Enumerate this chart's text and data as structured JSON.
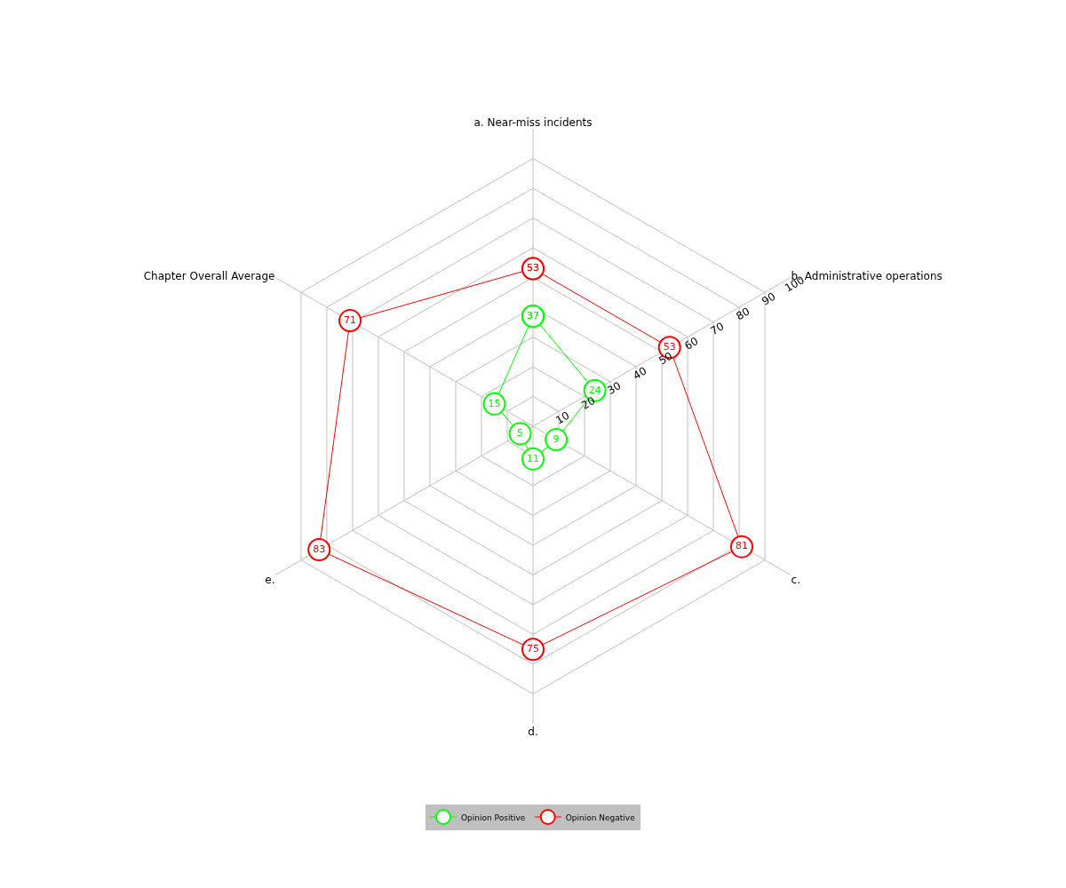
{
  "chart_data": {
    "type": "radar",
    "categories": [
      "a. Near-miss incidents",
      "b. Administrative operations",
      "c.",
      "d.",
      "e.",
      "Chapter Overall Average"
    ],
    "series": [
      {
        "name": "Opinion Positive",
        "color": "#00ff00",
        "values": [
          37,
          24,
          9,
          11,
          5,
          15
        ]
      },
      {
        "name": "Opinion Negative",
        "color": "#ff0000",
        "values": [
          53,
          53,
          81,
          75,
          83,
          71
        ]
      }
    ],
    "ylim": [
      0,
      100
    ],
    "yticks": [
      10,
      20,
      30,
      40,
      50,
      60,
      70,
      80,
      90,
      100
    ],
    "grid": true,
    "legend": "bottom",
    "marker": "circle",
    "line_style": "solid",
    "data_labels": true
  }
}
